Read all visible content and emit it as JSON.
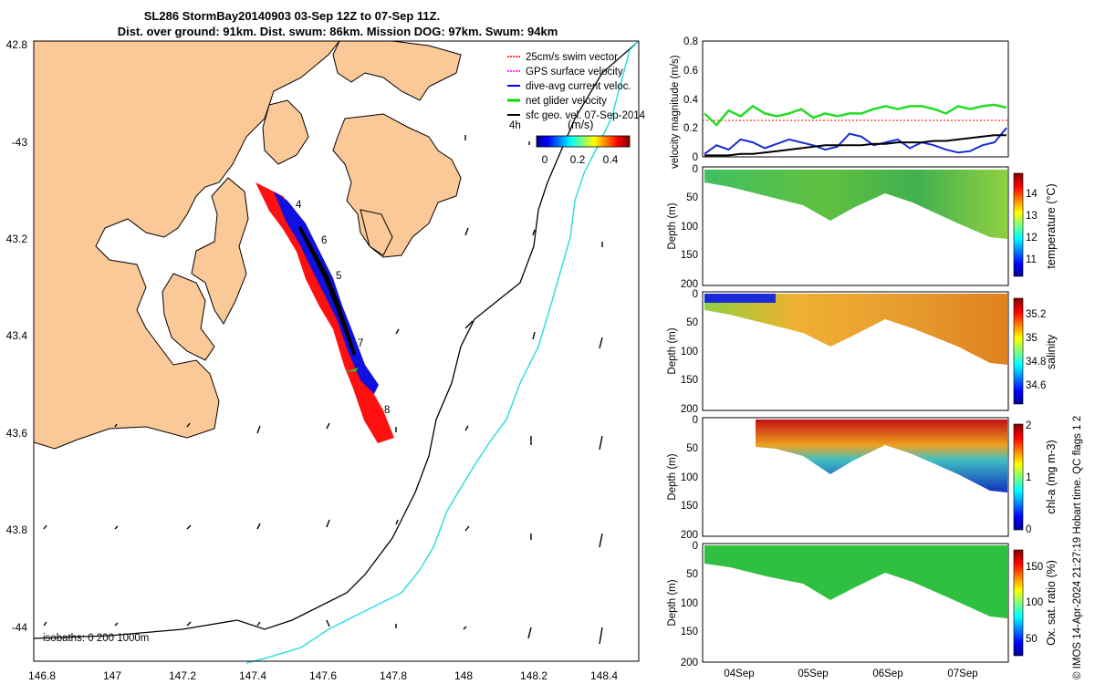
{
  "title_line1": "SL286 StormBay20140903 03-Sep 12Z to 07-Sep 11Z.",
  "title_line2": "Dist. over ground: 91km. Dist. swum: 86km. Mission DOG: 97km. Swum: 94km",
  "map": {
    "lon_ticks": [
      "146.8",
      "147",
      "147.2",
      "147.4",
      "147.6",
      "147.8",
      "148",
      "148.2",
      "148.4"
    ],
    "lat_ticks": [
      "42.8",
      "-43",
      "43.2",
      "43.4",
      "43.6",
      "43.8",
      "-44"
    ],
    "isobath_label": "isobaths: 0   200  1000m",
    "legend": [
      {
        "label": "25cm/s swim vector",
        "color": "#ff0000"
      },
      {
        "label": "GPS surface velocity",
        "color": "#ff00ff"
      },
      {
        "label": "dive-avg current veloc.",
        "color": "#0000ff"
      },
      {
        "label": "net glider velocity",
        "color": "#00dd00"
      },
      {
        "label": "sfc geo. vel. 07-Sep-2014",
        "color": "#000000"
      }
    ],
    "colorbar_label": "(m/s)",
    "colorbar_ticks": [
      "0",
      "0.2",
      "0.4"
    ],
    "time_label": "4h",
    "day_markers": [
      "4",
      "6",
      "5",
      "7",
      "8"
    ]
  },
  "chart_data": [
    {
      "type": "line",
      "ylabel": "velocity magnitude (m/s)",
      "ylim": [
        0,
        0.8
      ],
      "yticks": [
        "0",
        "0.2",
        "0.4",
        "0.6",
        "0.8"
      ],
      "series": [
        {
          "name": "net glider velocity",
          "color": "#22dd22",
          "values": [
            0.3,
            0.22,
            0.32,
            0.28,
            0.35,
            0.3,
            0.28,
            0.3,
            0.33,
            0.27,
            0.3,
            0.28,
            0.3,
            0.3,
            0.33,
            0.35,
            0.33,
            0.35,
            0.35,
            0.33,
            0.3,
            0.35,
            0.33,
            0.35,
            0.36,
            0.34
          ]
        },
        {
          "name": "dive-avg current veloc.",
          "color": "#1a2bd6",
          "values": [
            0.02,
            0.08,
            0.05,
            0.12,
            0.1,
            0.06,
            0.09,
            0.12,
            0.1,
            0.08,
            0.05,
            0.07,
            0.16,
            0.14,
            0.08,
            0.1,
            0.12,
            0.06,
            0.1,
            0.08,
            0.05,
            0.03,
            0.04,
            0.08,
            0.1,
            0.2
          ]
        },
        {
          "name": "sfc geo. vel.",
          "color": "#000000",
          "values": [
            0.01,
            0.01,
            0.01,
            0.02,
            0.02,
            0.03,
            0.04,
            0.05,
            0.06,
            0.07,
            0.08,
            0.08,
            0.08,
            0.08,
            0.09,
            0.09,
            0.1,
            0.1,
            0.1,
            0.11,
            0.11,
            0.12,
            0.13,
            0.14,
            0.15,
            0.15
          ]
        }
      ]
    },
    {
      "type": "heatmap",
      "ylabel": "Depth (m)",
      "yticks": [
        "0",
        "50",
        "100",
        "150",
        "200"
      ],
      "colorbar_label": "temperature (°C)",
      "colorbar_ticks": [
        "11",
        "12",
        "13",
        "14"
      ]
    },
    {
      "type": "heatmap",
      "ylabel": "Depth (m)",
      "yticks": [
        "0",
        "50",
        "100",
        "150",
        "200"
      ],
      "colorbar_label": "salinity",
      "colorbar_ticks": [
        "34.6",
        "34.8",
        "35",
        "35.2"
      ]
    },
    {
      "type": "heatmap",
      "ylabel": "Depth (m)",
      "yticks": [
        "0",
        "50",
        "100",
        "150",
        "200"
      ],
      "colorbar_label": "chl-a (mg m-3)",
      "colorbar_ticks": [
        "0",
        "1",
        "2"
      ]
    },
    {
      "type": "heatmap",
      "ylabel": "Depth (m)",
      "yticks": [
        "0",
        "50",
        "100",
        "150",
        "200"
      ],
      "colorbar_label": "Ox. sat. ratio (%)",
      "colorbar_ticks": [
        "50",
        "100",
        "150"
      ]
    }
  ],
  "time_ticks": [
    "04Sep",
    "05Sep",
    "06Sep",
    "07Sep"
  ],
  "footer": "© IMOS 14-Apr-2024 21:27:19 Hobart time. QC flags 1  2"
}
